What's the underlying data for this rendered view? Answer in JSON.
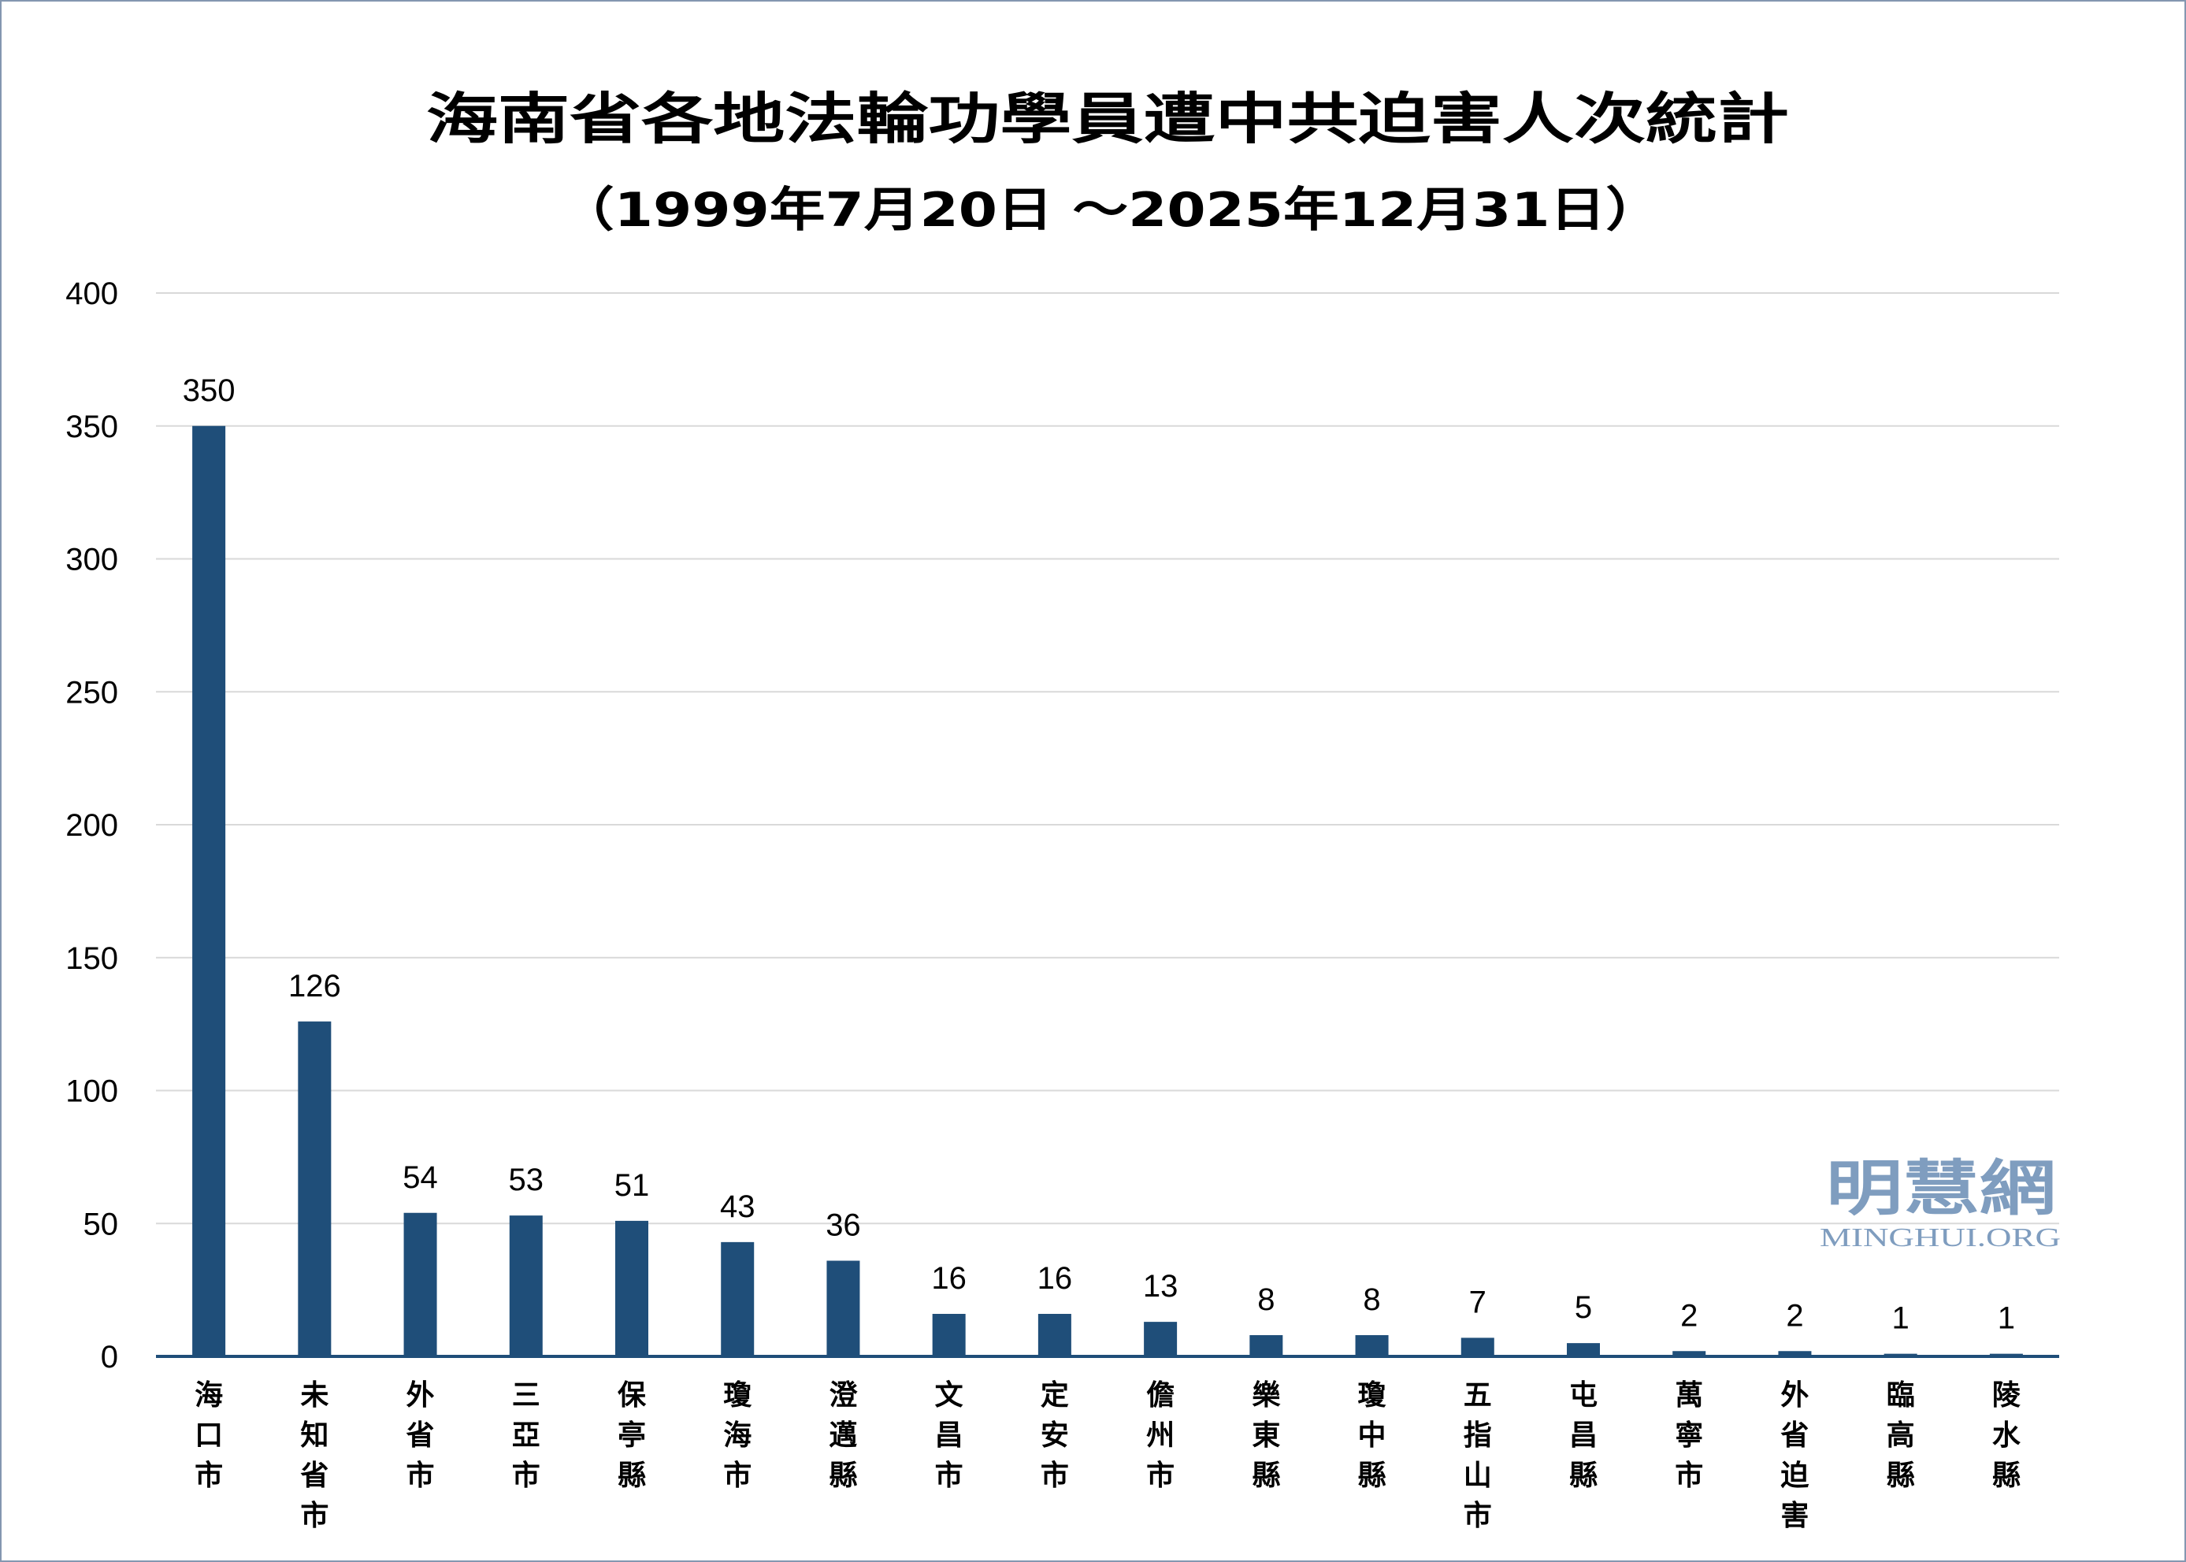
{
  "chart_data": {
    "type": "bar",
    "title": "海南省各地法輪功學員遭中共迫害人次統計",
    "subtitle": "（1999年7月20日 ～2025年12月31日）",
    "xlabel": "",
    "ylabel": "",
    "categories": [
      "海口市",
      "未知省市",
      "外省市",
      "三亞市",
      "保亭縣",
      "瓊海市",
      "澄邁縣",
      "文昌市",
      "定安市",
      "儋州市",
      "樂東縣",
      "瓊中縣",
      "五指山市",
      "屯昌縣",
      "萬寧市",
      "外省迫害",
      "臨高縣",
      "陵水縣"
    ],
    "values": [
      350,
      126,
      54,
      53,
      51,
      43,
      36,
      16,
      16,
      13,
      8,
      8,
      7,
      5,
      2,
      2,
      1,
      1
    ],
    "ylim": [
      0,
      400
    ],
    "yticks": [
      0,
      50,
      100,
      150,
      200,
      250,
      300,
      350,
      400
    ],
    "grid": true,
    "legend": "none",
    "data_labels": true,
    "colors": {
      "bar": "#1F4E79",
      "gridline": "#D9D9D9",
      "axis": "#1F4E79",
      "text": "#000000",
      "frame": "#8497B0"
    }
  },
  "watermark": {
    "logo_text": "明慧網",
    "url_text": "MINGHUI.ORG",
    "color": "#7F9DBF"
  }
}
